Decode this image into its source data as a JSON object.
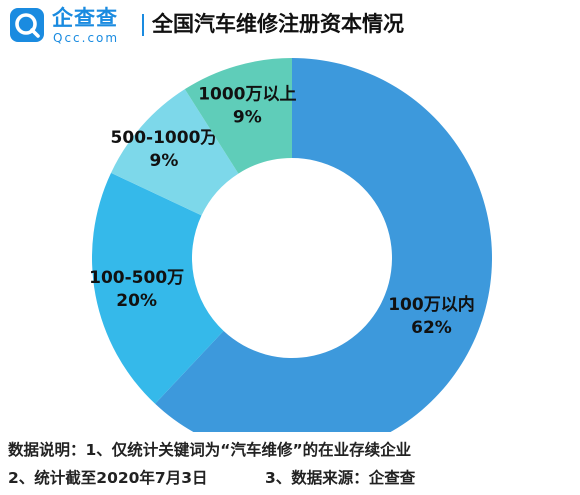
{
  "header": {
    "brand_name": "企查查",
    "brand_domain": "Qcc.com",
    "title": "全国汽车维修注册资本情况"
  },
  "colors": {
    "brand": "#1a8be0"
  },
  "chart_data": {
    "type": "pie",
    "style": "donut",
    "title": "全国汽车维修注册资本情况",
    "categories": [
      "100万以内",
      "100-500万",
      "500-1000万",
      "1000万以上"
    ],
    "values": [
      62,
      20,
      9,
      9
    ],
    "labels": [
      "62%",
      "20%",
      "9%",
      "9%"
    ],
    "unit": "%",
    "colors": [
      "#3d99dc",
      "#35b9ea",
      "#7dd8ea",
      "#5fcdb9"
    ],
    "legend": "none",
    "label_placement": "on-slice"
  },
  "notes": {
    "line1": "数据说明：1、仅统计关键词为“汽车维修”的在业存续企业",
    "line2a": "2、统计截至2020年7月3日",
    "line2b": "3、数据来源：企查查"
  }
}
